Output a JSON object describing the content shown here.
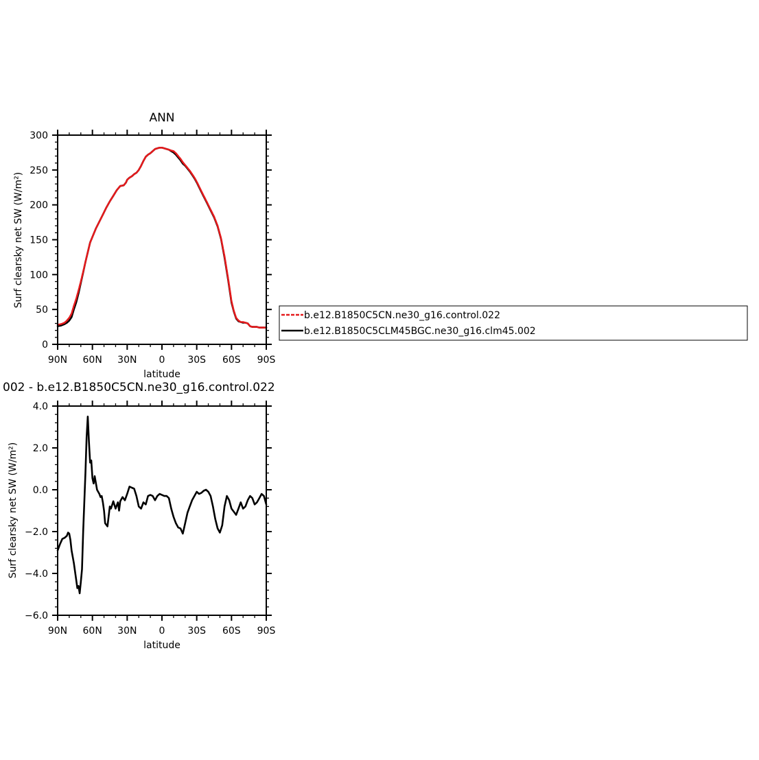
{
  "chart_data": [
    {
      "type": "line",
      "title": "ANN",
      "xlabel": "latitude",
      "ylabel": "Surf clearsky net SW (W/m²)",
      "xlim": [
        90,
        -90
      ],
      "ylim": [
        0,
        300
      ],
      "x_ticks": [
        {
          "value": 90,
          "label": "90N"
        },
        {
          "value": 60,
          "label": "60N"
        },
        {
          "value": 30,
          "label": "30N"
        },
        {
          "value": 0,
          "label": "0"
        },
        {
          "value": -30,
          "label": "30S"
        },
        {
          "value": -60,
          "label": "60S"
        },
        {
          "value": -90,
          "label": "90S"
        }
      ],
      "y_ticks": [
        {
          "value": 0,
          "label": "0"
        },
        {
          "value": 50,
          "label": "50"
        },
        {
          "value": 100,
          "label": "100"
        },
        {
          "value": 150,
          "label": "150"
        },
        {
          "value": 200,
          "label": "200"
        },
        {
          "value": 250,
          "label": "250"
        },
        {
          "value": 300,
          "label": "300"
        }
      ],
      "grid": false,
      "legend": "right",
      "series": [
        {
          "name": "b.e12.B1850C5CN.ne30_g16.control.022",
          "color": "#e41a1c",
          "dash": "dashed",
          "x": [
            90,
            87,
            84,
            82,
            80,
            78,
            76,
            74,
            72,
            70,
            68,
            66,
            64,
            62,
            60,
            57,
            54,
            51,
            48,
            45,
            42,
            39,
            36,
            33,
            31,
            30,
            28,
            26,
            24,
            22,
            20,
            18,
            16,
            14,
            12,
            10,
            8,
            6,
            4,
            2,
            0,
            -2,
            -4,
            -6,
            -8,
            -10,
            -12,
            -14,
            -16,
            -18,
            -20,
            -22,
            -24,
            -26,
            -28,
            -30,
            -33,
            -36,
            -39,
            -42,
            -45,
            -48,
            -51,
            -54,
            -57,
            -60,
            -62,
            -64,
            -66,
            -68,
            -70,
            -72,
            -74,
            -76,
            -78,
            -80,
            -82,
            -84,
            -86,
            -88,
            -90
          ],
          "values": [
            28,
            29,
            31,
            34,
            38,
            44,
            55,
            65,
            77,
            90,
            104,
            118,
            132,
            146,
            154,
            166,
            176,
            186,
            196,
            205,
            213,
            221,
            227,
            228,
            232,
            236,
            239,
            241,
            244,
            246,
            250,
            256,
            263,
            269,
            272,
            274,
            277,
            280,
            281,
            282,
            282,
            281,
            280,
            279,
            278,
            277,
            274,
            270,
            266,
            261,
            257,
            253,
            249,
            244,
            239,
            233,
            223,
            213,
            203,
            193,
            183,
            170,
            152,
            126,
            95,
            62,
            48,
            38,
            34,
            32,
            32,
            31,
            30,
            26,
            25,
            25,
            25,
            24,
            24,
            24,
            24
          ]
        },
        {
          "name": "b.e12.B1850C5CLM45BGC.ne30_g16.clm45.002",
          "color": "#000000",
          "dash": "solid",
          "x": [
            90,
            87,
            84,
            82,
            80,
            78,
            76,
            74,
            72,
            70,
            68,
            66,
            64,
            62,
            60,
            57,
            54,
            51,
            48,
            45,
            42,
            39,
            36,
            33,
            31,
            30,
            28,
            26,
            24,
            22,
            20,
            18,
            16,
            14,
            12,
            10,
            8,
            6,
            4,
            2,
            0,
            -2,
            -4,
            -6,
            -8,
            -10,
            -12,
            -14,
            -16,
            -18,
            -20,
            -22,
            -24,
            -26,
            -28,
            -30,
            -33,
            -36,
            -39,
            -42,
            -45,
            -48,
            -51,
            -54,
            -57,
            -60,
            -62,
            -64,
            -66,
            -68,
            -70,
            -72,
            -74,
            -76,
            -78,
            -80,
            -82,
            -84,
            -86,
            -88,
            -90
          ],
          "values": [
            26,
            27,
            29,
            31,
            34,
            39,
            50,
            60,
            73,
            88,
            103,
            118,
            132,
            146,
            154,
            166,
            176,
            186,
            196,
            205,
            213,
            221,
            227,
            228,
            232,
            236,
            239,
            241,
            244,
            246,
            250,
            256,
            263,
            269,
            272,
            274,
            277,
            280,
            281,
            282,
            282,
            281,
            280,
            279,
            277,
            275,
            272,
            268,
            264,
            259,
            256,
            252,
            248,
            243,
            238,
            232,
            222,
            212,
            202,
            192,
            182,
            169,
            151,
            124,
            93,
            60,
            47,
            37,
            33,
            32,
            31,
            31,
            30,
            26,
            25,
            25,
            25,
            24,
            24,
            24,
            24
          ]
        }
      ]
    },
    {
      "type": "line",
      "title": "002 - b.e12.B1850C5CN.ne30_g16.control.022",
      "xlabel": "latitude",
      "ylabel": "Surf clearsky net SW (W/m²)",
      "xlim": [
        90,
        -90
      ],
      "ylim": [
        -6,
        4
      ],
      "x_ticks": [
        {
          "value": 90,
          "label": "90N"
        },
        {
          "value": 60,
          "label": "60N"
        },
        {
          "value": 30,
          "label": "30N"
        },
        {
          "value": 0,
          "label": "0"
        },
        {
          "value": -30,
          "label": "30S"
        },
        {
          "value": -60,
          "label": "60S"
        },
        {
          "value": -90,
          "label": "90S"
        }
      ],
      "y_ticks": [
        {
          "value": -6,
          "label": "−6.0"
        },
        {
          "value": -4,
          "label": "−4.0"
        },
        {
          "value": -2,
          "label": "−2.0"
        },
        {
          "value": 0,
          "label": "0.0"
        },
        {
          "value": 2,
          "label": "2.0"
        },
        {
          "value": 4,
          "label": "4.0"
        }
      ],
      "grid": false,
      "series": [
        {
          "color": "#000000",
          "dash": "solid",
          "x": [
            90,
            88,
            86,
            84,
            82,
            81,
            80,
            79,
            78,
            76,
            74,
            73,
            72,
            71,
            70,
            69,
            68,
            66,
            65,
            64,
            63,
            62,
            61,
            60,
            59,
            58,
            56,
            54,
            53,
            52,
            51,
            50,
            49,
            47,
            45,
            44,
            42,
            40,
            38,
            37,
            36,
            35,
            34,
            32,
            30,
            28,
            26,
            24,
            22,
            20,
            18,
            16,
            14,
            12,
            10,
            8,
            6,
            4,
            2,
            0,
            -2,
            -4,
            -6,
            -8,
            -10,
            -12,
            -14,
            -16,
            -18,
            -20,
            -22,
            -24,
            -26,
            -28,
            -30,
            -32,
            -34,
            -36,
            -38,
            -40,
            -42,
            -44,
            -46,
            -48,
            -50,
            -52,
            -54,
            -56,
            -58,
            -60,
            -62,
            -64,
            -66,
            -68,
            -70,
            -72,
            -74,
            -76,
            -78,
            -80,
            -82,
            -84,
            -86,
            -88,
            -90
          ],
          "values": [
            -2.9,
            -2.6,
            -2.35,
            -2.3,
            -2.2,
            -2.05,
            -2.1,
            -2.4,
            -2.9,
            -3.5,
            -4.3,
            -4.7,
            -4.6,
            -4.95,
            -4.4,
            -3.8,
            -2.0,
            0.8,
            2.5,
            3.5,
            2.3,
            1.3,
            1.4,
            0.55,
            0.3,
            0.65,
            0.0,
            -0.2,
            -0.35,
            -0.3,
            -0.6,
            -1.0,
            -1.6,
            -1.75,
            -0.8,
            -0.9,
            -0.55,
            -0.9,
            -0.6,
            -1.0,
            -0.55,
            -0.45,
            -0.35,
            -0.5,
            -0.2,
            0.15,
            0.1,
            0.05,
            -0.3,
            -0.8,
            -0.9,
            -0.6,
            -0.7,
            -0.3,
            -0.25,
            -0.3,
            -0.5,
            -0.3,
            -0.2,
            -0.25,
            -0.3,
            -0.3,
            -0.4,
            -0.9,
            -1.3,
            -1.6,
            -1.8,
            -1.85,
            -2.1,
            -1.6,
            -1.1,
            -0.8,
            -0.5,
            -0.3,
            -0.1,
            -0.2,
            -0.15,
            -0.05,
            0.0,
            -0.1,
            -0.3,
            -0.8,
            -1.4,
            -1.85,
            -2.05,
            -1.7,
            -0.8,
            -0.3,
            -0.5,
            -0.9,
            -1.05,
            -1.2,
            -0.9,
            -0.6,
            -0.9,
            -0.8,
            -0.5,
            -0.3,
            -0.4,
            -0.7,
            -0.6,
            -0.4,
            -0.2,
            -0.3,
            -0.7
          ]
        }
      ]
    }
  ]
}
